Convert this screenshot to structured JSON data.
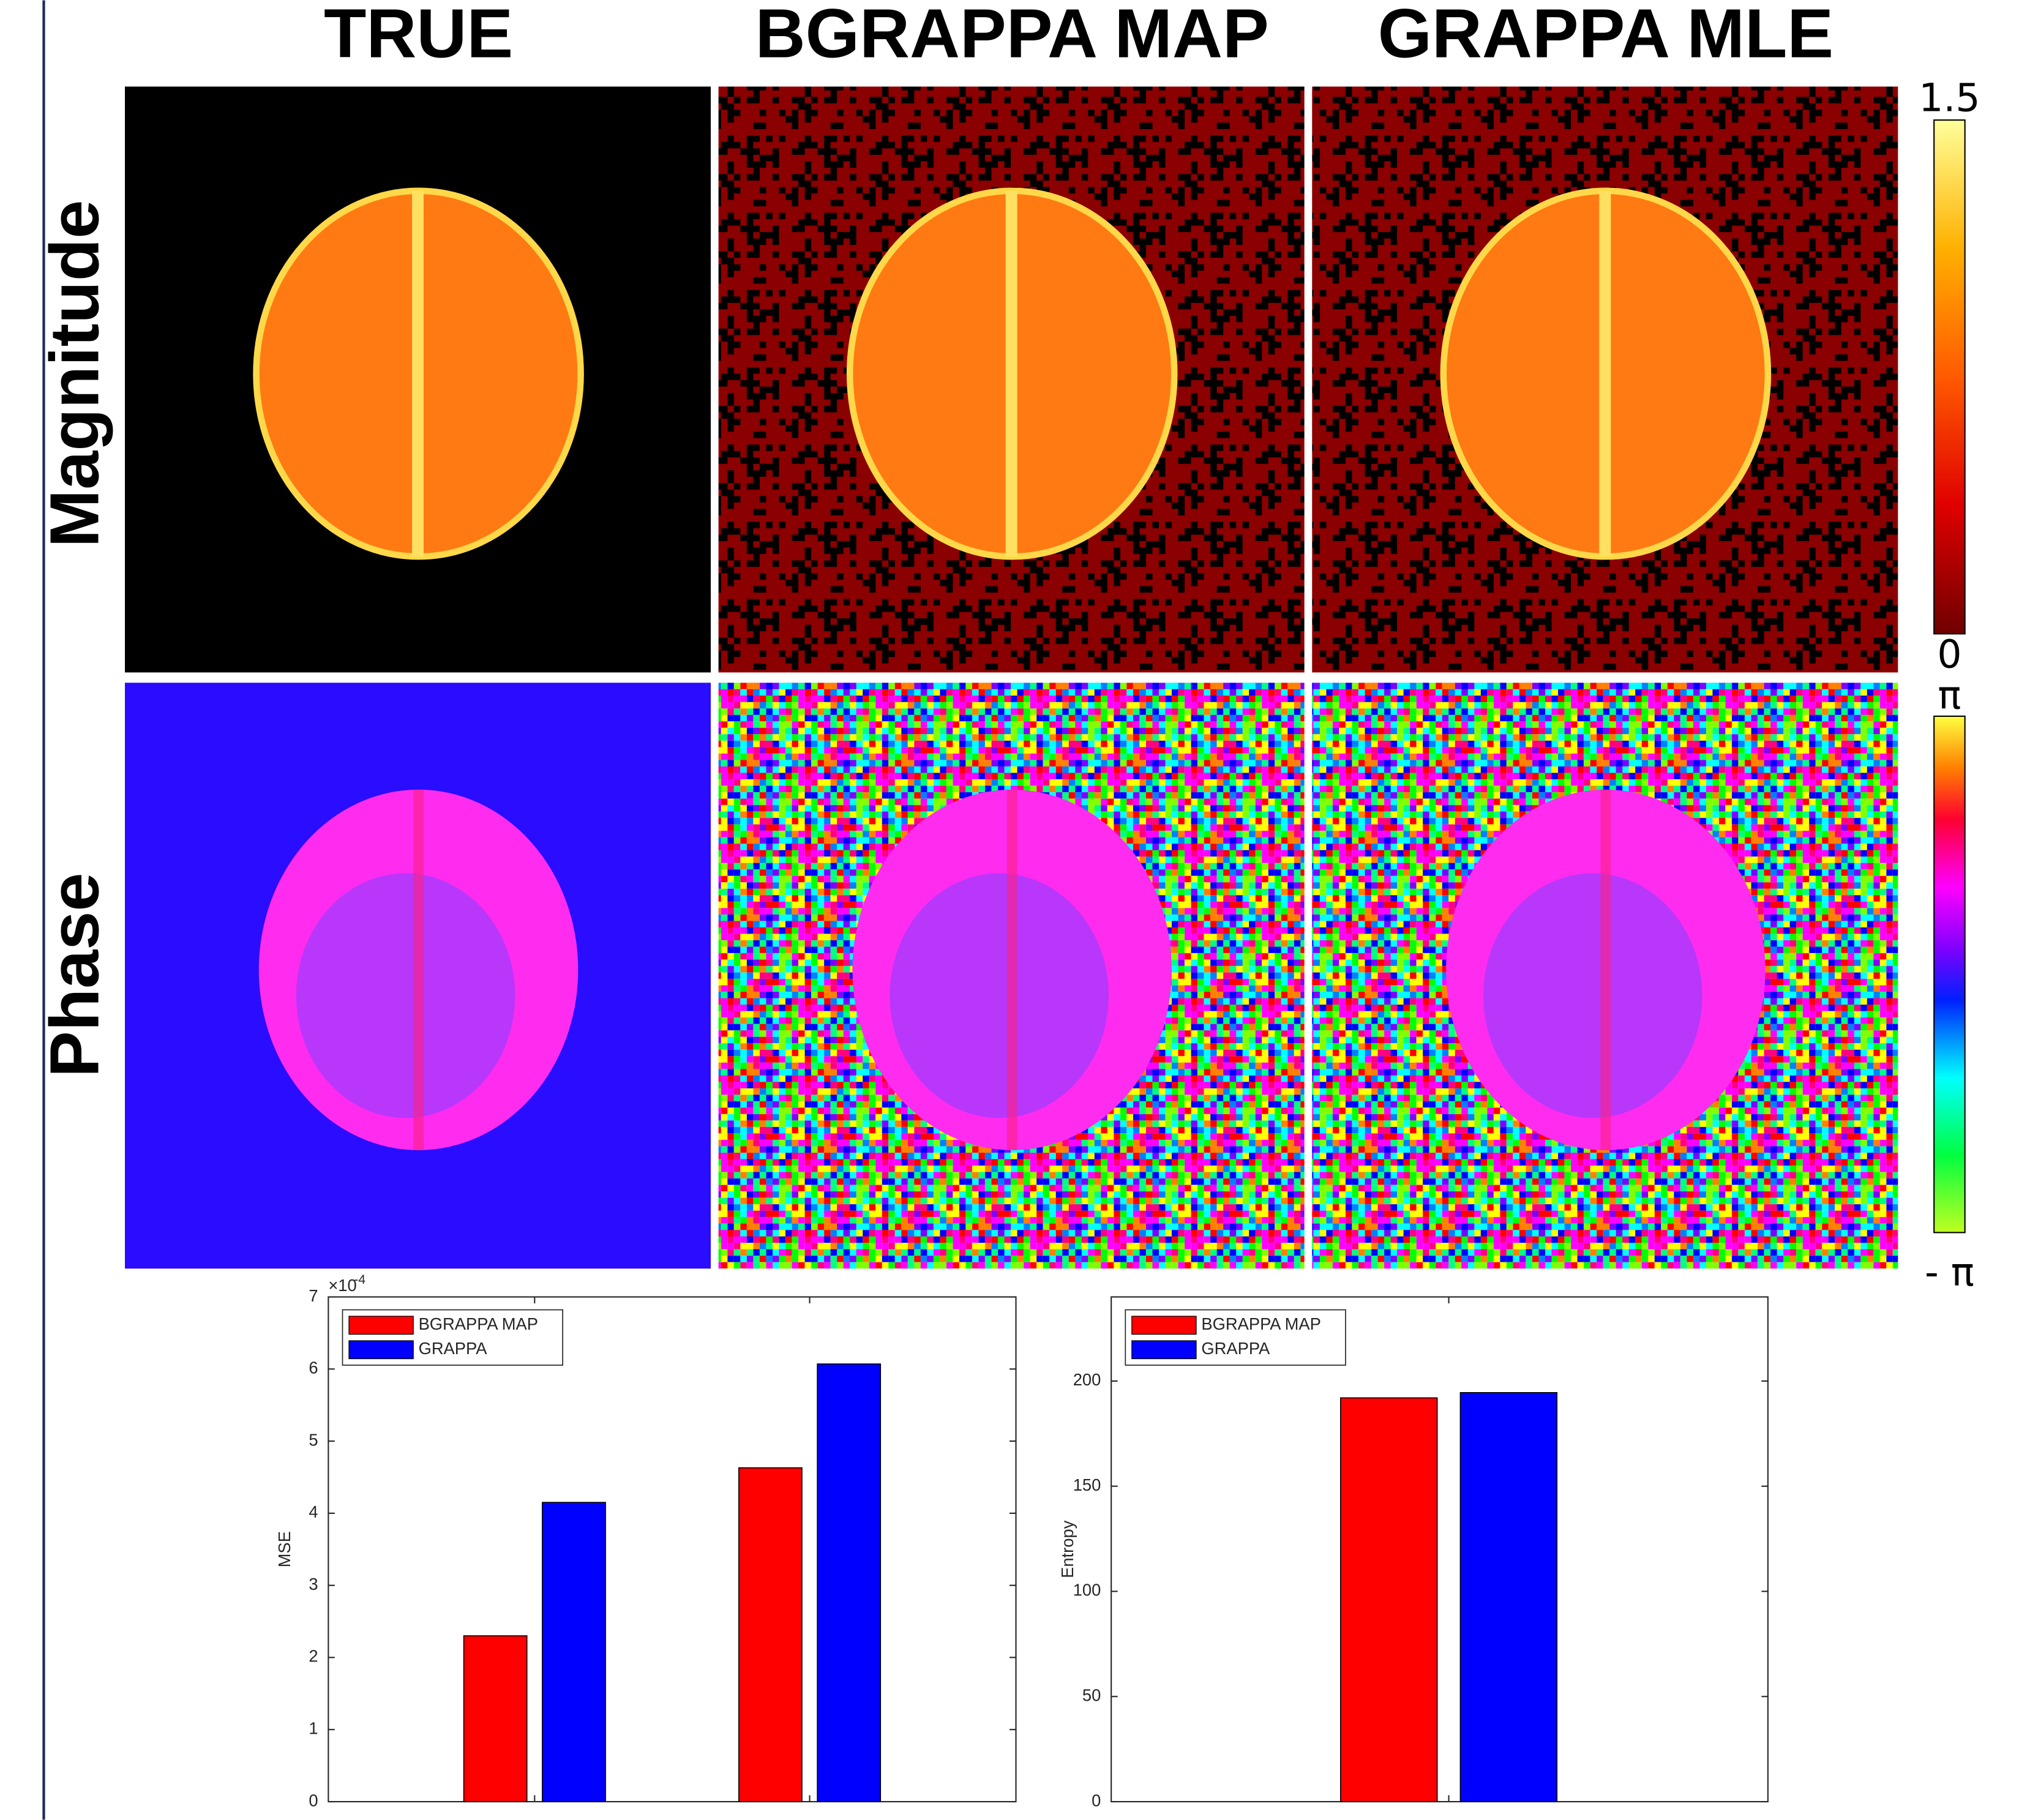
{
  "column_titles": [
    "TRUE",
    "BGRAPPA MAP",
    "GRAPPA MLE"
  ],
  "row_labels": [
    "Magnitude",
    "Phase"
  ],
  "colorbars": [
    {
      "top_label": "1.5",
      "bottom_label": "0"
    },
    {
      "top_label": "π",
      "bottom_label": "- π"
    }
  ],
  "chart_data": [
    {
      "type": "bar",
      "ylabel": "MSE",
      "y_multiplier": {
        "base": "×10",
        "exponent": "-4"
      },
      "categories": [
        null,
        null
      ],
      "series": [
        {
          "name": "BGRAPPA MAP",
          "color": "#ff0000",
          "values": [
            2.3,
            4.63
          ]
        },
        {
          "name": "GRAPPA",
          "color": "#0000ff",
          "values": [
            4.15,
            6.07
          ]
        }
      ],
      "ylim": [
        0,
        7
      ],
      "yticks": [
        0,
        1,
        2,
        3,
        4,
        5,
        6,
        7
      ],
      "grid": false,
      "legend": "upper left"
    },
    {
      "type": "bar",
      "ylabel": "Entropy",
      "categories": [
        null
      ],
      "series": [
        {
          "name": "BGRAPPA MAP",
          "color": "#ff0000",
          "values": [
            192
          ]
        },
        {
          "name": "GRAPPA",
          "color": "#0000ff",
          "values": [
            194.5
          ]
        }
      ],
      "ylim": [
        0,
        240
      ],
      "yticks": [
        0,
        50,
        100,
        150,
        200
      ],
      "grid": false,
      "legend": "upper left"
    }
  ]
}
